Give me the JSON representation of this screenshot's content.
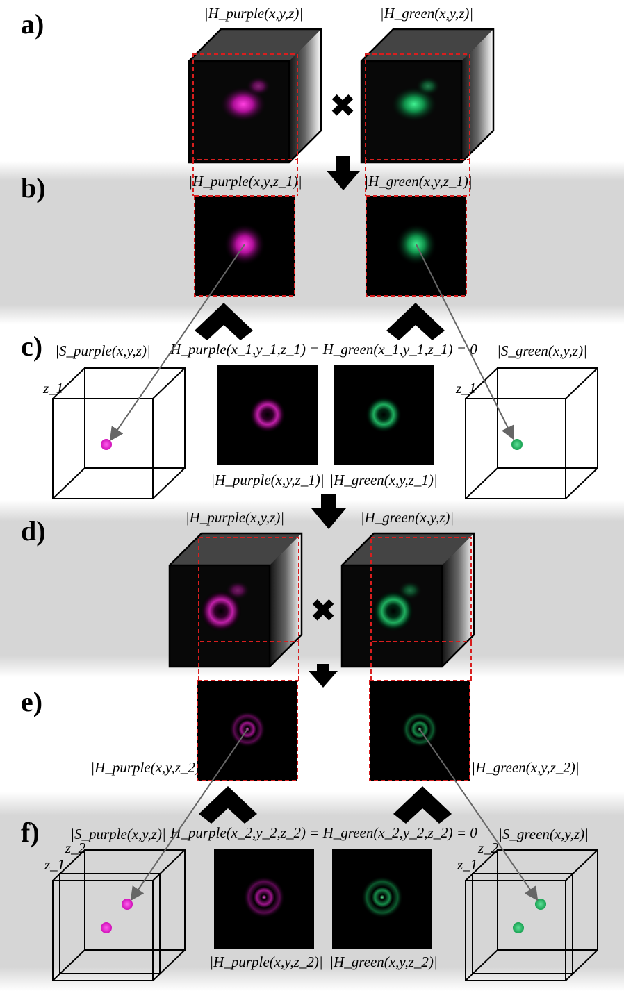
{
  "panels": {
    "a": "a)",
    "b": "b)",
    "c": "c)",
    "d": "d)",
    "e": "e)",
    "f": "f)"
  },
  "labels": {
    "a_purple": "|H_purple(x,y,z)|",
    "a_green": "|H_green(x,y,z)|",
    "b_purple": "|H_purple(x,y,z_1)|",
    "b_green": "|H_green(x,y,z_1)|",
    "c_s_purple": "|S_purple(x,y,z)|",
    "c_s_green": "|S_green(x,y,z)|",
    "c_equation": "H_purple(x_1,y_1,z_1) = H_green(x_1,y_1,z_1) = 0",
    "c_purple": "|H_purple(x,y,z_1)|",
    "c_green": "|H_green(x,y,z_1)|",
    "c_z1_left": "z_1",
    "c_z1_right": "z_1",
    "d_purple": "|H_purple(x,y,z)|",
    "d_green": "|H_green(x,y,z)|",
    "e_purple": "|H_purple(x,y,z_2)|",
    "e_green": "|H_green(x,y,z_2)|",
    "f_s_purple": "|S_purple(x,y,z)|",
    "f_s_green": "|S_green(x,y,z)|",
    "f_equation": "H_purple(x_2,y_2,z_2) = H_green(x_2,y_2,z_2) = 0",
    "f_purple": "|H_purple(x,y,z_2)|",
    "f_green": "|H_green(x,y,z_2)|",
    "f_z2_left": "z_2",
    "f_z1_left": "z_1",
    "f_z2_right": "z_2",
    "f_z1_right": "z_1"
  },
  "colors": {
    "purple": "#e020c8",
    "green": "#20b060",
    "band": "#d6d6d6",
    "dashed": "#d81e1e"
  },
  "icons": {
    "multiply": "multiply-icon",
    "down_arrow": "down-arrow-icon",
    "split_chevron": "chevron-up-icon"
  }
}
